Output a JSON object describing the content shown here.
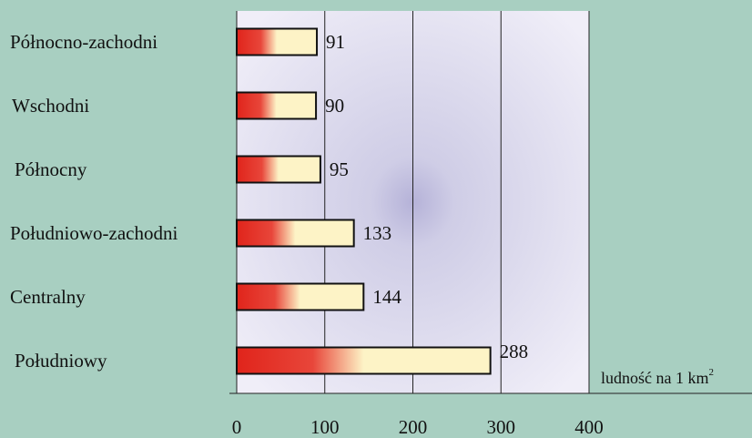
{
  "chart_data": {
    "type": "bar",
    "orientation": "horizontal",
    "categories": [
      "Północno-zachodni",
      "Wschodni",
      "Północny",
      "Południowo-zachodni",
      "Centralny",
      "Południowy"
    ],
    "values": [
      91,
      90,
      95,
      133,
      144,
      288
    ],
    "value_labels": [
      "91",
      "90",
      "95",
      "133",
      "144",
      "288"
    ],
    "xlim": [
      0,
      400
    ],
    "xticks": [
      0,
      100,
      200,
      300,
      400
    ],
    "xtick_labels": [
      "0",
      "100",
      "200",
      "300",
      "400"
    ],
    "xlabel": "ludność na 1 km",
    "xlabel_superscript": "2",
    "grid": true
  },
  "colors": {
    "background": "#a8cfc1",
    "plot_center": "#b5b2d8",
    "plot_edge": "#f0eef8",
    "bar_red": "#e0241b",
    "bar_cream": "#fdf3c6",
    "bar_stroke": "#111111",
    "gridline": "#222222"
  }
}
